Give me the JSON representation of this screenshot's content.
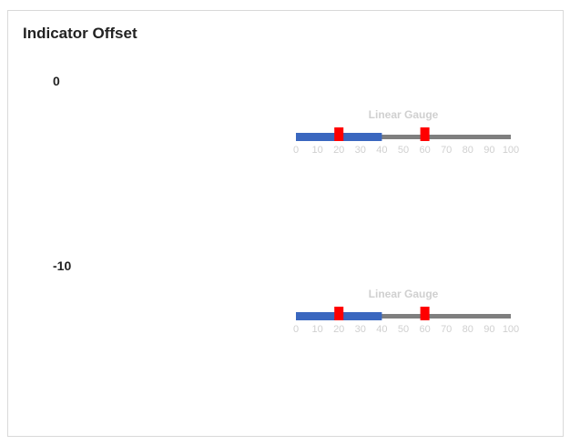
{
  "panel": {
    "title": "Indicator Offset"
  },
  "gauges": [
    {
      "offset_label": "0",
      "title": "Linear Gauge",
      "min": 0,
      "max": 100,
      "ticks": [
        "0",
        "10",
        "20",
        "30",
        "40",
        "50",
        "60",
        "70",
        "80",
        "90",
        "100"
      ],
      "range_value": 40,
      "markers": [
        20,
        60
      ]
    },
    {
      "offset_label": "-10",
      "title": "Linear Gauge",
      "min": 0,
      "max": 100,
      "ticks": [
        "0",
        "10",
        "20",
        "30",
        "40",
        "50",
        "60",
        "70",
        "80",
        "90",
        "100"
      ],
      "range_value": 40,
      "markers": [
        20,
        60
      ]
    }
  ],
  "colors": {
    "track": "#7f7f7f",
    "range": "#3a67bf",
    "marker": "#ff0000",
    "label": "#d0d0d0"
  }
}
